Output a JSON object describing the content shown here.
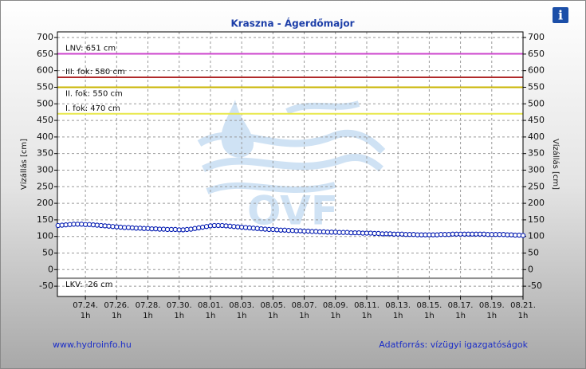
{
  "chart_data": {
    "type": "line",
    "title": "Kraszna - Ágerdőmajor",
    "ylabel": "Vízállás [cm]",
    "y2label": "Vízállás [cm]",
    "watermark": "OVF",
    "footer_left": "www.hydroinfo.hu",
    "footer_right": "Adatforrás: vízügyi igazgatóságok",
    "info_icon": "i",
    "grid": true,
    "ylim": [
      -81,
      717
    ],
    "yticks": [
      -50,
      0,
      50,
      100,
      150,
      200,
      250,
      300,
      350,
      400,
      450,
      500,
      550,
      600,
      650,
      700
    ],
    "y2lim": [
      -81,
      717
    ],
    "y2ticks": [
      -50,
      0,
      50,
      100,
      150,
      200,
      250,
      300,
      350,
      400,
      450,
      500,
      550,
      600,
      650,
      700
    ],
    "xlim": [
      "07.22. 6h",
      "08.21. 1h"
    ],
    "xticks": [
      "07.24. 1h",
      "07.26. 1h",
      "07.28. 1h",
      "07.30. 1h",
      "08.01. 1h",
      "08.03. 1h",
      "08.05. 1h",
      "08.07. 1h",
      "08.09. 1h",
      "08.11. 1h",
      "08.13. 1h",
      "08.15. 1h",
      "08.17. 1h",
      "08.19. 1h",
      "08.21. 1h"
    ],
    "thresholds": [
      {
        "value": 651,
        "label": "LNV: 651 cm",
        "color": "#cc44cc"
      },
      {
        "value": 580,
        "label": "III. fok: 580 cm",
        "color": "#b02a2a"
      },
      {
        "value": 550,
        "label": "II. fok: 550 cm",
        "color": "#c9b400"
      },
      {
        "value": 470,
        "label": "I. fok: 470 cm",
        "color": "#e8e84a"
      },
      {
        "value": -26,
        "label": "LKV: -26 cm",
        "color": "#909090"
      }
    ],
    "x": [
      "07.22. 7h",
      "07.22. 13h",
      "07.22. 19h",
      "07.23. 1h",
      "07.23. 7h",
      "07.23. 13h",
      "07.23. 19h",
      "07.24. 1h",
      "07.24. 7h",
      "07.24. 13h",
      "07.24. 19h",
      "07.25. 1h",
      "07.25. 7h",
      "07.25. 13h",
      "07.25. 19h",
      "07.26. 1h",
      "07.26. 7h",
      "07.26. 13h",
      "07.26. 19h",
      "07.27. 1h",
      "07.27. 7h",
      "07.27. 13h",
      "07.27. 19h",
      "07.28. 1h",
      "07.28. 7h",
      "07.28. 13h",
      "07.28. 19h",
      "07.29. 1h",
      "07.29. 7h",
      "07.29. 13h",
      "07.29. 19h",
      "07.30. 1h",
      "07.30. 7h",
      "07.30. 13h",
      "07.30. 19h",
      "07.31. 1h",
      "07.31. 7h",
      "07.31. 13h",
      "07.31. 19h",
      "08.01. 1h",
      "08.01. 7h",
      "08.01. 13h",
      "08.01. 19h",
      "08.02. 1h",
      "08.02. 7h",
      "08.02. 13h",
      "08.02. 19h",
      "08.03. 1h",
      "08.03. 7h",
      "08.03. 13h",
      "08.03. 19h",
      "08.04. 1h",
      "08.04. 7h",
      "08.04. 13h",
      "08.04. 19h",
      "08.05. 1h",
      "08.05. 7h",
      "08.05. 13h",
      "08.05. 19h",
      "08.06. 1h",
      "08.06. 7h",
      "08.06. 13h",
      "08.06. 19h",
      "08.07. 1h",
      "08.07. 7h",
      "08.07. 13h",
      "08.07. 19h",
      "08.08. 1h",
      "08.08. 7h",
      "08.08. 13h",
      "08.08. 19h",
      "08.09. 1h",
      "08.09. 7h",
      "08.09. 13h",
      "08.09. 19h",
      "08.10. 1h",
      "08.10. 7h",
      "08.10. 13h",
      "08.10. 19h",
      "08.11. 1h",
      "08.11. 7h",
      "08.11. 13h",
      "08.11. 19h",
      "08.12. 1h",
      "08.12. 7h",
      "08.12. 13h",
      "08.12. 19h",
      "08.13. 1h",
      "08.13. 7h",
      "08.13. 13h",
      "08.13. 19h",
      "08.14. 1h",
      "08.14. 7h",
      "08.14. 13h",
      "08.14. 19h",
      "08.15. 1h",
      "08.15. 7h",
      "08.15. 13h",
      "08.15. 19h",
      "08.16. 1h",
      "08.16. 7h",
      "08.16. 13h",
      "08.16. 19h",
      "08.17. 1h",
      "08.17. 7h",
      "08.17. 13h",
      "08.17. 19h",
      "08.18. 1h",
      "08.18. 7h",
      "08.18. 13h",
      "08.18. 19h",
      "08.19. 1h",
      "08.19. 7h",
      "08.19. 13h",
      "08.19. 19h",
      "08.20. 1h",
      "08.20. 7h",
      "08.20. 13h",
      "08.20. 19h",
      "08.21. 1h"
    ],
    "series": [
      {
        "color": "#0018b0",
        "values": [
          133,
          134,
          135,
          136,
          137,
          137,
          137,
          136,
          136,
          135,
          134,
          133,
          132,
          131,
          130,
          129,
          128,
          127,
          127,
          126,
          125,
          125,
          124,
          124,
          123,
          123,
          122,
          122,
          121,
          121,
          121,
          120,
          120,
          121,
          122,
          124,
          126,
          128,
          130,
          132,
          133,
          133,
          133,
          132,
          131,
          130,
          129,
          128,
          127,
          126,
          125,
          124,
          123,
          122,
          121,
          121,
          120,
          119,
          119,
          118,
          118,
          117,
          117,
          116,
          116,
          115,
          115,
          114,
          114,
          113,
          113,
          113,
          112,
          112,
          112,
          111,
          111,
          111,
          110,
          110,
          110,
          109,
          109,
          108,
          108,
          108,
          107,
          107,
          107,
          106,
          106,
          106,
          105,
          105,
          105,
          105,
          105,
          105,
          106,
          106,
          106,
          107,
          107,
          107,
          107,
          107,
          107,
          107,
          107,
          107,
          106,
          106,
          106,
          106,
          106,
          105,
          105,
          104,
          104,
          103
        ]
      }
    ]
  }
}
